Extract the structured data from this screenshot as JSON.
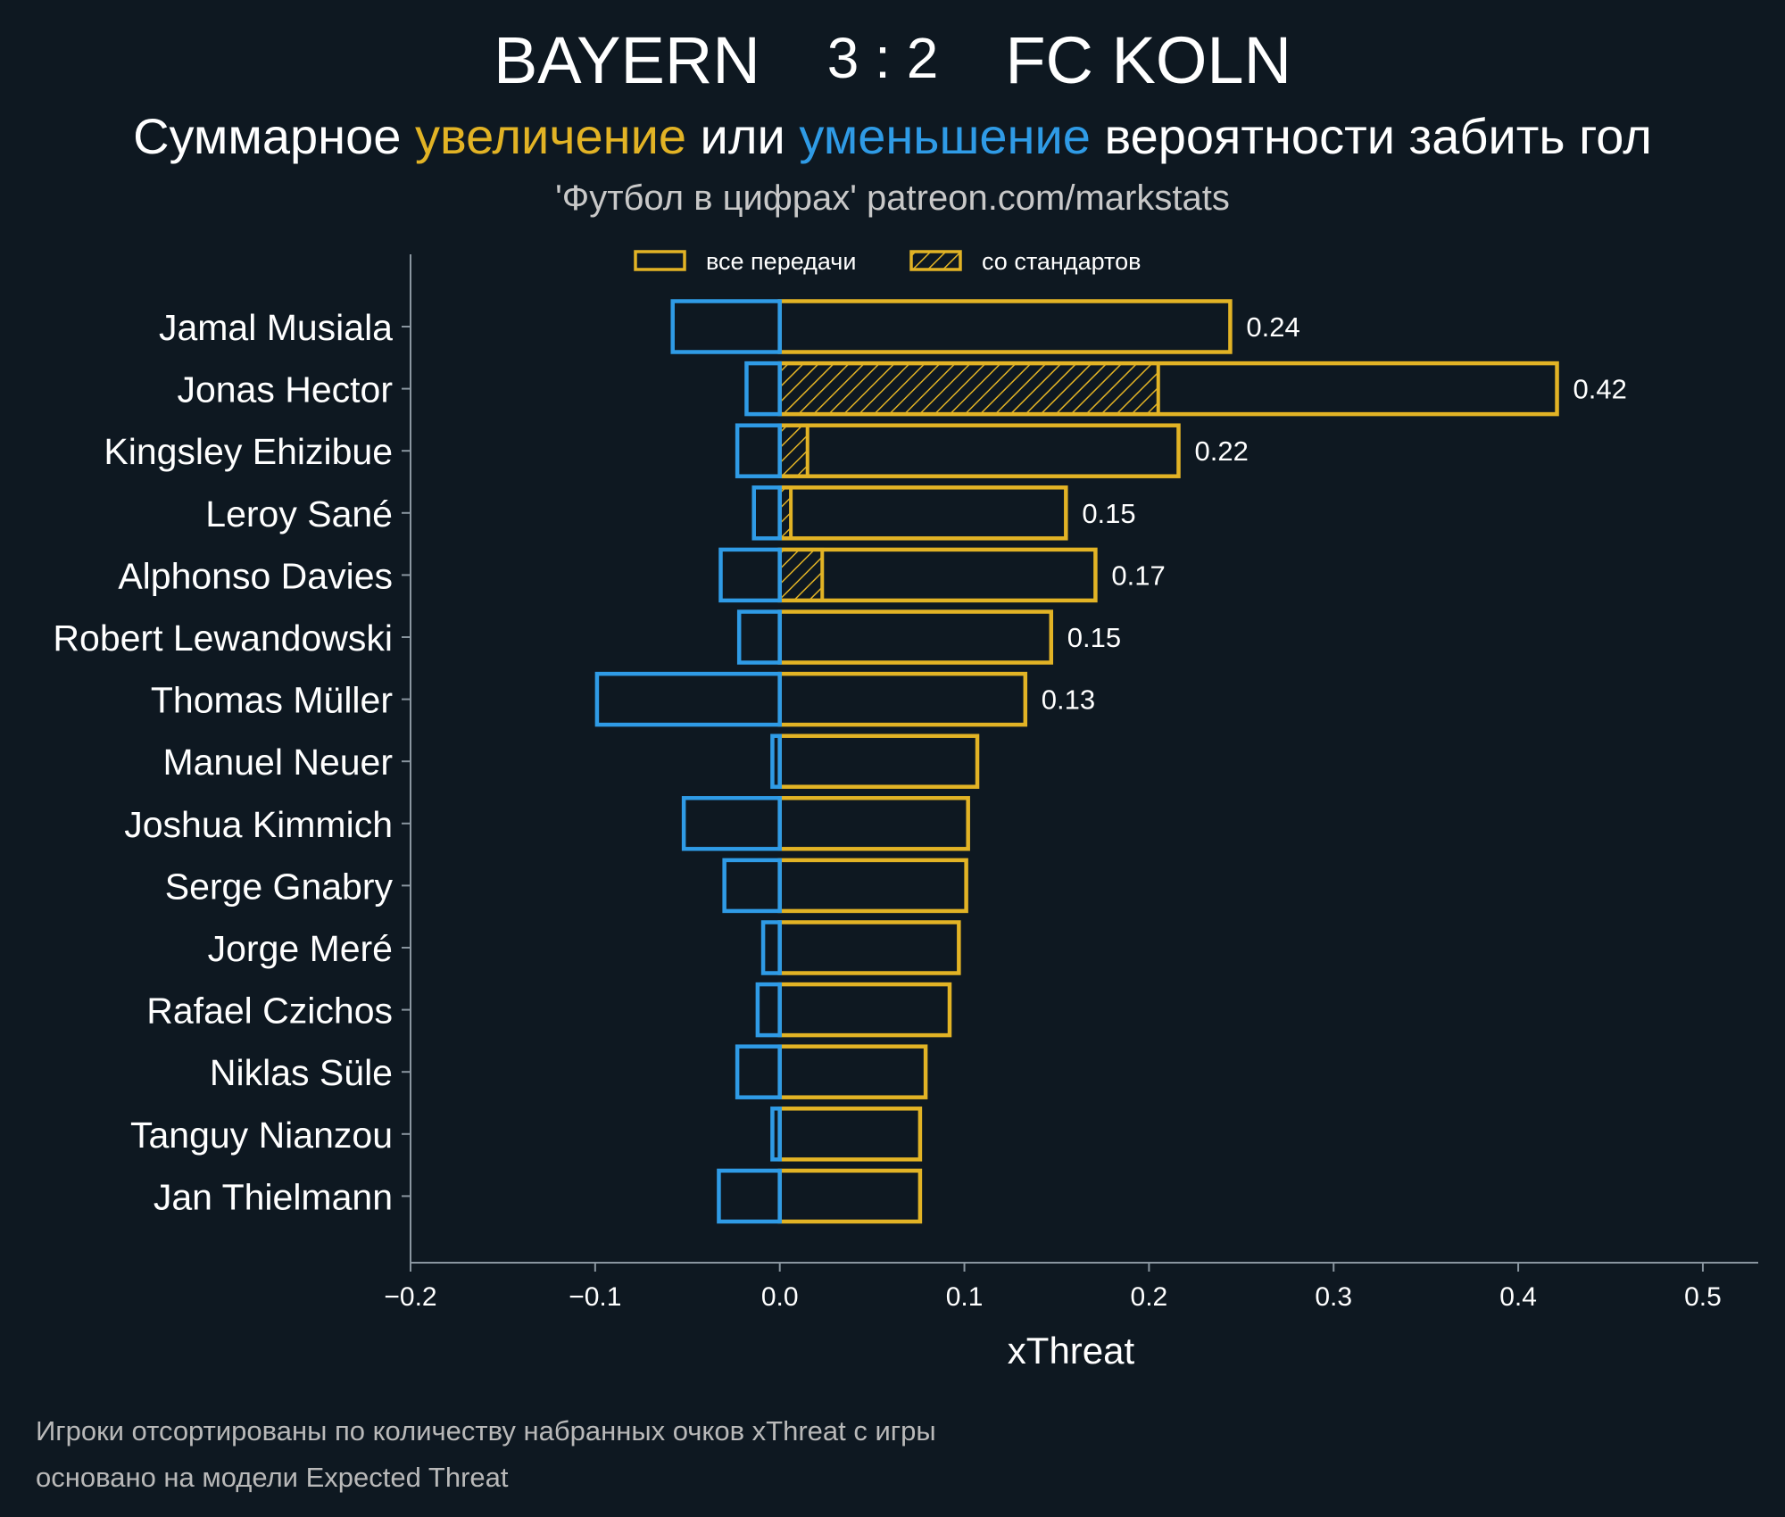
{
  "header": {
    "home_team": "BAYERN",
    "score": "3 : 2",
    "away_team": "FC KOLN"
  },
  "subtitle": {
    "part1": "Суммарное ",
    "increase": "увеличение",
    "part2": " или ",
    "decrease": "уменьшение",
    "part3": " вероятности забить гол"
  },
  "source": "'Футбол в цифрах' patreon.com/markstats",
  "footnotes": {
    "line1": "Игроки отсортированы по количеству набранных очков xThreat с игры",
    "line2": "основано на модели Expected Threat"
  },
  "colors": {
    "background": "#0e1821",
    "positive": "#e2b325",
    "negative": "#2f9be6",
    "axis": "#8a96a0",
    "text": "#ffffff"
  },
  "chart_data": {
    "type": "bar",
    "orientation": "horizontal",
    "xlabel": "xThreat",
    "xlim": [
      -0.2,
      0.53
    ],
    "xticks": [
      -0.2,
      -0.1,
      0.0,
      0.1,
      0.2,
      0.3,
      0.4,
      0.5
    ],
    "xtick_labels": [
      "−0.2",
      "−0.1",
      "0.0",
      "0.1",
      "0.2",
      "0.3",
      "0.4",
      "0.5"
    ],
    "legend": {
      "position": "top-center",
      "entries": [
        "все передачи",
        "со стандартов"
      ]
    },
    "categories": [
      "Jamal Musiala",
      "Jonas Hector",
      "Kingsley Ehizibue",
      "Leroy Sané",
      "Alphonso Davies",
      "Robert Lewandowski",
      "Thomas Müller",
      "Manuel Neuer",
      "Joshua Kimmich",
      "Serge Gnabry",
      "Jorge Meré",
      "Rafael Czichos",
      "Niklas Süle",
      "Tanguy Nianzou",
      "Jan Thielmann"
    ],
    "series": [
      {
        "name": "все передачи (увеличение)",
        "values": [
          0.244,
          0.421,
          0.216,
          0.155,
          0.171,
          0.147,
          0.133,
          0.107,
          0.102,
          0.101,
          0.097,
          0.092,
          0.079,
          0.076,
          0.076
        ]
      },
      {
        "name": "все передачи (уменьшение)",
        "values": [
          -0.058,
          -0.018,
          -0.023,
          -0.014,
          -0.032,
          -0.022,
          -0.099,
          -0.004,
          -0.052,
          -0.03,
          -0.009,
          -0.012,
          -0.023,
          -0.004,
          -0.033
        ]
      },
      {
        "name": "со стандартов",
        "values": [
          0,
          0.205,
          0.015,
          0.006,
          0.023,
          0,
          0,
          0,
          0,
          0,
          0,
          0,
          0,
          0,
          0
        ]
      }
    ],
    "value_labels": [
      "0.24",
      "0.42",
      "0.22",
      "0.15",
      "0.17",
      "0.15",
      "0.13",
      "",
      "",
      "",
      "",
      "",
      "",
      "",
      ""
    ]
  }
}
